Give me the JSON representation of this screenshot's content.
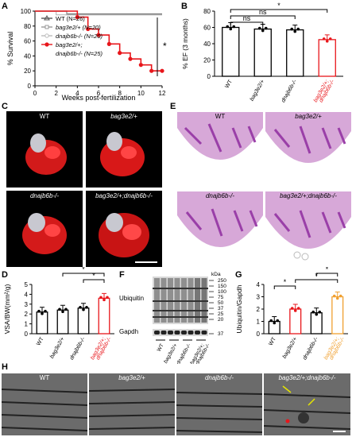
{
  "panels": {
    "A": "A",
    "B": "B",
    "C": "C",
    "D": "D",
    "E": "E",
    "F": "F",
    "G": "G",
    "H": "H"
  },
  "chart_data": [
    {
      "panel": "A",
      "type": "line",
      "xlabel": "Weeks post-fertilization",
      "ylabel": "% Survival",
      "xlim": [
        0,
        12
      ],
      "ylim": [
        0,
        100
      ],
      "xticks": [
        0,
        2,
        4,
        6,
        8,
        10,
        12
      ],
      "yticks": [
        0,
        20,
        40,
        60,
        80,
        100
      ],
      "significance": "*",
      "series": [
        {
          "name": "WT (N=26)",
          "color": "#555555",
          "marker": "triangle",
          "x": [
            0,
            2,
            3,
            4,
            12
          ],
          "y": [
            100,
            100,
            96,
            96,
            96
          ]
        },
        {
          "name": "bag3e2/+ (N=20)",
          "color": "#999999",
          "marker": "square",
          "x": [
            0,
            3,
            12
          ],
          "y": [
            100,
            95,
            95
          ]
        },
        {
          "name": "dnajb6b-/- (N=20)",
          "color": "#bbbbbb",
          "marker": "circle-open",
          "x": [
            0,
            2,
            12
          ],
          "y": [
            100,
            95,
            95
          ]
        },
        {
          "name": "bag3e2/+; dnajb6b-/- (N=25)",
          "color": "#e8161b",
          "marker": "circle",
          "x": [
            0,
            4,
            5,
            6,
            7,
            8,
            9,
            10,
            11,
            12
          ],
          "y": [
            100,
            92,
            76,
            68,
            56,
            44,
            36,
            28,
            20,
            20
          ]
        }
      ],
      "legend": [
        "WT (N=26)",
        "bag3e2/+ (N=20)",
        "dnajb6b-/- (N=20)",
        "bag3e2/+;",
        "dnajb6b-/- (N=25)"
      ]
    },
    {
      "panel": "B",
      "type": "bar",
      "ylabel": "% EF (3 months)",
      "ylim": [
        0,
        80
      ],
      "yticks": [
        0,
        20,
        40,
        60,
        80
      ],
      "categories": [
        "WT",
        "bag3e2/+",
        "dnajb6b-/-",
        "bag3e2/+; dnajb6b-/-"
      ],
      "values": [
        60,
        58,
        57,
        45
      ],
      "colors": [
        "#000000",
        "#000000",
        "#000000",
        "#e8161b"
      ],
      "significance": [
        "ns",
        "ns",
        "*"
      ]
    },
    {
      "panel": "D",
      "type": "bar",
      "ylabel": "VSA/BW(mm²/g)",
      "ylim": [
        0,
        5
      ],
      "yticks": [
        0,
        1,
        2,
        3,
        4,
        5
      ],
      "categories": [
        "WT",
        "bag3e2/+",
        "dnajb6b-/-",
        "bag3e2/+; dnajb6b-/-"
      ],
      "values": [
        2.2,
        2.4,
        2.6,
        3.6
      ],
      "colors": [
        "#000000",
        "#000000",
        "#000000",
        "#e8161b"
      ],
      "significance": [
        "*",
        "*"
      ]
    },
    {
      "panel": "G",
      "type": "bar",
      "ylabel": "Ubiquitin/Gapdh",
      "ylim": [
        0,
        4
      ],
      "yticks": [
        0,
        1,
        2,
        3,
        4
      ],
      "categories": [
        "WT",
        "bag3e2/+",
        "dnajb6b-/-",
        "bag3e2/+; dnajb6b-/-"
      ],
      "values": [
        1.0,
        2.0,
        1.7,
        3.0
      ],
      "colors": [
        "#000000",
        "#e8161b",
        "#000000",
        "#f0a030"
      ],
      "significance": [
        "*",
        "*",
        "*"
      ]
    }
  ],
  "panel_C": {
    "titles": [
      "WT",
      "bag3e2/+",
      "dnajb6b-/-",
      "bag3e2/+;dnajb6b-/-"
    ]
  },
  "panel_E": {
    "titles": [
      "WT",
      "bag3e2/+",
      "dnajb6b-/-",
      "bag3e2/+;dnajb6b-/-"
    ]
  },
  "panel_F": {
    "blot_label": "Ubiquitin",
    "loading_label": "Gapdh",
    "kda_label": "kDa",
    "markers": [
      "250",
      "150",
      "100",
      "75",
      "50",
      "37",
      "25",
      "20",
      "37"
    ],
    "lanes": [
      "WT",
      "bag3e2/+",
      "dnajb6b-/-",
      "bag3e2/+; dnajb6b-/-"
    ]
  },
  "panel_H": {
    "titles": [
      "WT",
      "bag3e2/+",
      "dnajb6b-/-",
      "bag3e2/+;dnajb6b-/-"
    ]
  }
}
